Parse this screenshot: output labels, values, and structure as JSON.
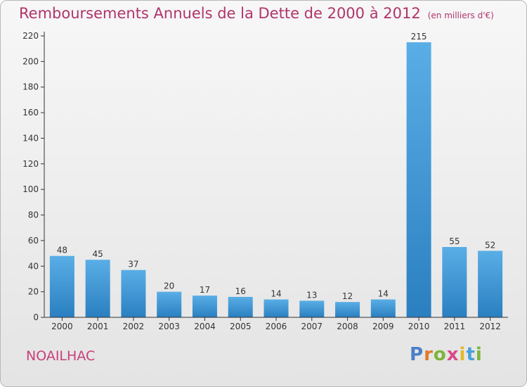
{
  "header": {
    "title": "Remboursements Annuels de la Dette de 2000 à 2012",
    "subtitle": "(en milliers d'€)"
  },
  "footer": {
    "town": "NOAILHAC",
    "logo": "Proxiti"
  },
  "colors": {
    "bar_light": "#5aaee6",
    "bar_dark": "#2a7fc0",
    "title": "#b0346a"
  },
  "chart_data": {
    "type": "bar",
    "title": "Remboursements Annuels de la Dette de 2000 à 2012",
    "xlabel": "",
    "ylabel": "",
    "categories": [
      "2000",
      "2001",
      "2002",
      "2003",
      "2004",
      "2005",
      "2006",
      "2007",
      "2008",
      "2009",
      "2010",
      "2011",
      "2012"
    ],
    "values": [
      48,
      45,
      37,
      20,
      17,
      16,
      14,
      13,
      12,
      14,
      215,
      55,
      52
    ],
    "ylim": [
      0,
      220
    ],
    "yticks": [
      0,
      20,
      40,
      60,
      80,
      100,
      120,
      140,
      160,
      180,
      200,
      220
    ],
    "grid": false,
    "data_labels": true
  }
}
